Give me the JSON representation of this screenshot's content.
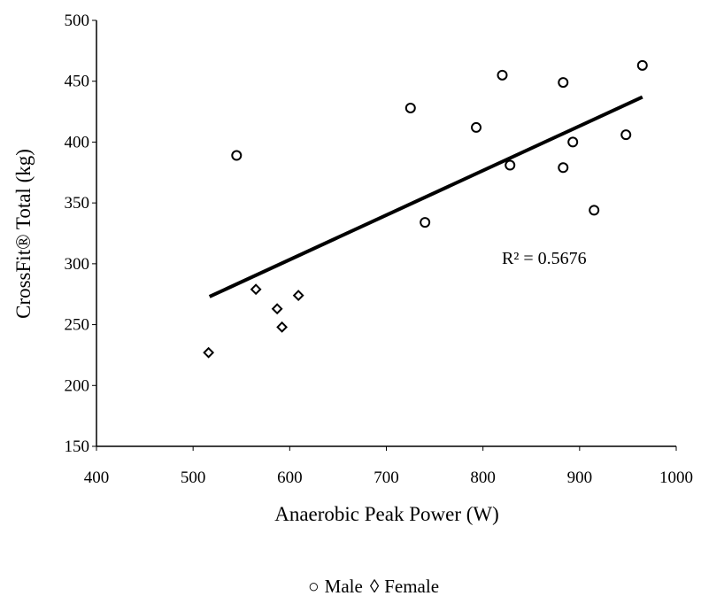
{
  "chart_data": {
    "type": "scatter",
    "xlabel": "Anaerobic Peak Power (W)",
    "ylabel": "CrossFit® Total (kg)",
    "xlim": [
      400,
      1000
    ],
    "ylim": [
      150,
      500
    ],
    "x_ticks": [
      "400",
      "500",
      "600",
      "700",
      "800",
      "900",
      "1000"
    ],
    "y_ticks": [
      "150",
      "200",
      "250",
      "300",
      "350",
      "400",
      "450",
      "500"
    ],
    "grid": false,
    "series": [
      {
        "name": "Male",
        "marker": "circle",
        "points": [
          {
            "x": 545,
            "y": 389
          },
          {
            "x": 725,
            "y": 428
          },
          {
            "x": 740,
            "y": 334
          },
          {
            "x": 793,
            "y": 412
          },
          {
            "x": 820,
            "y": 455
          },
          {
            "x": 828,
            "y": 381
          },
          {
            "x": 883,
            "y": 449
          },
          {
            "x": 883,
            "y": 379
          },
          {
            "x": 893,
            "y": 400
          },
          {
            "x": 915,
            "y": 344
          },
          {
            "x": 948,
            "y": 406
          },
          {
            "x": 965,
            "y": 463
          }
        ]
      },
      {
        "name": "Female",
        "marker": "diamond",
        "points": [
          {
            "x": 516,
            "y": 227
          },
          {
            "x": 565,
            "y": 279
          },
          {
            "x": 587,
            "y": 263
          },
          {
            "x": 592,
            "y": 248
          },
          {
            "x": 609,
            "y": 274
          }
        ]
      }
    ],
    "trendline": {
      "x": [
        517,
        965
      ],
      "y": [
        273,
        437
      ],
      "annotation": "R² = 0.5676"
    },
    "legend": {
      "placement": "bottom",
      "entries": [
        {
          "symbol": "○",
          "label": "Male"
        },
        {
          "symbol": "◊",
          "label": "Female"
        }
      ]
    }
  }
}
